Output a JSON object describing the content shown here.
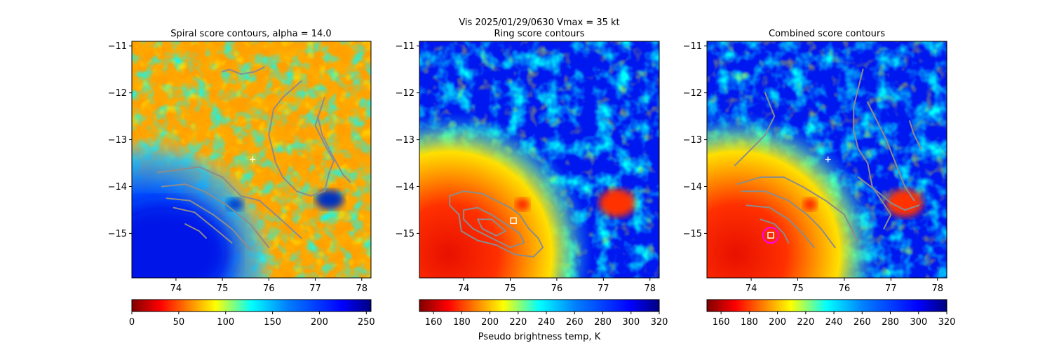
{
  "figure": {
    "suptitle": "Vis  2025/01/29/0630    Vmax = 35 kt",
    "colorbar_label": "Pseudo brightness temp, K"
  },
  "chart_data": [
    {
      "type": "heatmap",
      "title": "Spiral score contours, alpha = 14.0",
      "xlim": [
        73.05,
        78.2
      ],
      "ylim": [
        -15.95,
        -10.9
      ],
      "xticks": [
        74,
        75,
        76,
        77,
        78
      ],
      "yticks": [
        -11,
        -12,
        -13,
        -14,
        -15
      ],
      "colormap": "jet_r",
      "colorbar": {
        "min": 0,
        "max": 255,
        "ticks": [
          0,
          50,
          100,
          150,
          200,
          250
        ]
      },
      "center_marker": {
        "type": "plus",
        "lon": 75.65,
        "lat": -13.42,
        "color": "#ffffff"
      },
      "contours": [
        [
          [
            75.0,
            -11.55
          ],
          [
            75.15,
            -11.5
          ],
          [
            75.4,
            -11.6
          ],
          [
            75.7,
            -11.55
          ],
          [
            75.9,
            -11.45
          ]
        ],
        [
          [
            73.6,
            -13.7
          ],
          [
            74.0,
            -13.65
          ],
          [
            74.5,
            -13.58
          ],
          [
            75.0,
            -13.8
          ],
          [
            75.4,
            -14.2
          ],
          [
            75.8,
            -14.3
          ],
          [
            76.2,
            -14.65
          ],
          [
            76.7,
            -15.1
          ]
        ],
        [
          [
            73.7,
            -14.0
          ],
          [
            74.2,
            -13.95
          ],
          [
            74.6,
            -14.1
          ],
          [
            75.1,
            -14.4
          ],
          [
            75.6,
            -14.8
          ],
          [
            76.0,
            -15.3
          ]
        ],
        [
          [
            73.8,
            -14.25
          ],
          [
            74.3,
            -14.3
          ],
          [
            74.8,
            -14.6
          ],
          [
            75.2,
            -14.9
          ],
          [
            75.6,
            -15.35
          ]
        ],
        [
          [
            73.95,
            -14.45
          ],
          [
            74.4,
            -14.55
          ],
          [
            74.9,
            -14.95
          ],
          [
            75.2,
            -15.2
          ]
        ],
        [
          [
            74.2,
            -14.8
          ],
          [
            74.5,
            -14.95
          ],
          [
            74.65,
            -15.1
          ]
        ],
        [
          [
            76.7,
            -11.75
          ],
          [
            76.3,
            -12.1
          ],
          [
            76.1,
            -12.35
          ],
          [
            76.0,
            -12.9
          ],
          [
            76.15,
            -13.5
          ],
          [
            76.3,
            -13.8
          ],
          [
            76.6,
            -14.1
          ],
          [
            76.9,
            -14.2
          ],
          [
            77.2,
            -14.1
          ],
          [
            77.3,
            -13.7
          ],
          [
            77.4,
            -13.45
          ],
          [
            77.2,
            -13.1
          ],
          [
            77.0,
            -12.7
          ],
          [
            77.2,
            -12.1
          ]
        ],
        [
          [
            77.05,
            -12.5
          ],
          [
            77.15,
            -12.9
          ],
          [
            77.35,
            -13.3
          ],
          [
            77.6,
            -13.75
          ],
          [
            77.75,
            -13.9
          ]
        ]
      ]
    },
    {
      "type": "heatmap",
      "title": "Ring score contours",
      "xlim": [
        73.05,
        78.2
      ],
      "ylim": [
        -15.95,
        -10.9
      ],
      "xticks": [
        74,
        75,
        76,
        77,
        78
      ],
      "yticks": [
        -11,
        -12,
        -13,
        -14,
        -15
      ],
      "colormap": "jet_r",
      "colorbar": {
        "min": 150,
        "max": 320,
        "ticks": [
          160,
          180,
          200,
          220,
          240,
          260,
          280,
          300,
          320
        ]
      },
      "center_marker": {
        "type": "square",
        "lon": 75.07,
        "lat": -14.73,
        "color": "#ffffff"
      },
      "contours": [
        [
          [
            73.7,
            -14.2
          ],
          [
            74.0,
            -14.1
          ],
          [
            74.4,
            -14.15
          ],
          [
            74.7,
            -14.3
          ],
          [
            75.0,
            -14.45
          ],
          [
            75.2,
            -14.6
          ],
          [
            75.4,
            -14.9
          ],
          [
            75.6,
            -15.1
          ],
          [
            75.7,
            -15.3
          ],
          [
            75.5,
            -15.5
          ],
          [
            75.1,
            -15.45
          ],
          [
            74.7,
            -15.25
          ],
          [
            74.3,
            -15.15
          ],
          [
            73.95,
            -14.95
          ],
          [
            73.9,
            -14.6
          ],
          [
            73.7,
            -14.4
          ],
          [
            73.7,
            -14.2
          ]
        ],
        [
          [
            74.0,
            -14.5
          ],
          [
            74.3,
            -14.45
          ],
          [
            74.6,
            -14.6
          ],
          [
            74.9,
            -14.8
          ],
          [
            75.2,
            -15.0
          ],
          [
            75.3,
            -15.2
          ],
          [
            75.0,
            -15.3
          ],
          [
            74.6,
            -15.1
          ],
          [
            74.2,
            -14.9
          ],
          [
            74.0,
            -14.7
          ],
          [
            74.0,
            -14.5
          ]
        ],
        [
          [
            74.3,
            -14.7
          ],
          [
            74.6,
            -14.7
          ],
          [
            74.9,
            -14.95
          ],
          [
            74.7,
            -15.05
          ],
          [
            74.4,
            -14.9
          ],
          [
            74.3,
            -14.7
          ]
        ]
      ]
    },
    {
      "type": "heatmap",
      "title": "Combined score contours",
      "xlim": [
        73.05,
        78.2
      ],
      "ylim": [
        -15.95,
        -10.9
      ],
      "xticks": [
        74,
        75,
        76,
        77,
        78
      ],
      "yticks": [
        -11,
        -12,
        -13,
        -14,
        -15
      ],
      "colormap": "jet_r",
      "colorbar": {
        "min": 150,
        "max": 320,
        "ticks": [
          160,
          180,
          200,
          220,
          240,
          260,
          280,
          300,
          320
        ]
      },
      "center_marker": {
        "type": "square",
        "lon": 74.42,
        "lat": -15.04,
        "color": "#ffffff",
        "ring_color": "#ff00ff"
      },
      "extra_marker": {
        "type": "plus",
        "lon": 75.65,
        "lat": -13.42,
        "color": "#ffffff"
      },
      "contours": [
        [
          [
            74.3,
            -12.0
          ],
          [
            74.5,
            -12.5
          ],
          [
            74.3,
            -12.9
          ],
          [
            74.0,
            -13.2
          ],
          [
            73.65,
            -13.55
          ]
        ],
        [
          [
            73.7,
            -13.95
          ],
          [
            74.2,
            -13.8
          ],
          [
            74.7,
            -13.8
          ],
          [
            75.1,
            -14.0
          ],
          [
            75.6,
            -14.3
          ],
          [
            76.0,
            -14.6
          ],
          [
            76.3,
            -15.2
          ]
        ],
        [
          [
            73.8,
            -14.1
          ],
          [
            74.3,
            -14.1
          ],
          [
            74.8,
            -14.3
          ],
          [
            75.2,
            -14.6
          ],
          [
            75.5,
            -14.9
          ],
          [
            75.8,
            -15.3
          ]
        ],
        [
          [
            73.9,
            -14.4
          ],
          [
            74.4,
            -14.45
          ],
          [
            74.8,
            -14.7
          ],
          [
            75.1,
            -15.0
          ],
          [
            75.35,
            -15.3
          ]
        ],
        [
          [
            74.2,
            -14.7
          ],
          [
            74.5,
            -14.8
          ],
          [
            74.7,
            -15.0
          ],
          [
            74.8,
            -15.2
          ]
        ],
        [
          [
            76.4,
            -11.5
          ],
          [
            76.3,
            -11.9
          ],
          [
            76.2,
            -12.3
          ],
          [
            76.2,
            -12.8
          ],
          [
            76.3,
            -13.2
          ],
          [
            76.5,
            -13.5
          ],
          [
            76.6,
            -14.0
          ],
          [
            76.8,
            -14.3
          ],
          [
            77.0,
            -14.6
          ],
          [
            76.85,
            -14.9
          ]
        ],
        [
          [
            76.5,
            -12.2
          ],
          [
            76.7,
            -12.6
          ],
          [
            76.9,
            -13.0
          ],
          [
            77.1,
            -13.5
          ],
          [
            77.3,
            -14.0
          ],
          [
            77.5,
            -14.3
          ]
        ],
        [
          [
            77.4,
            -12.6
          ],
          [
            77.5,
            -12.9
          ],
          [
            77.65,
            -13.2
          ]
        ],
        [
          [
            76.3,
            -13.8
          ],
          [
            76.7,
            -14.1
          ],
          [
            77.0,
            -14.35
          ],
          [
            77.3,
            -14.5
          ],
          [
            77.6,
            -14.4
          ]
        ]
      ]
    }
  ]
}
